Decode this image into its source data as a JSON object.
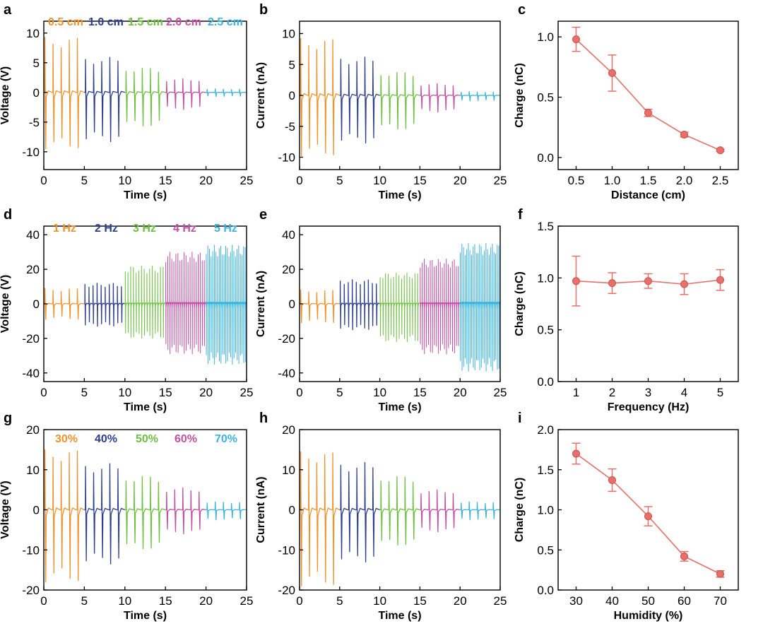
{
  "colors": {
    "orange": "#f0922b",
    "navy": "#2d3e8f",
    "green": "#6cbf3f",
    "magenta": "#c24fa4",
    "cyan": "#3bb3df",
    "charge": "#e8706a",
    "axis": "#000000"
  },
  "chart_data": [
    {
      "id": "a",
      "type": "line",
      "panel_label": "a",
      "title": "",
      "xlabel": "Time (s)",
      "ylabel": "Voltage (V)",
      "xlim": [
        0,
        25
      ],
      "ylim": [
        -13,
        12
      ],
      "xticks": [
        0,
        5,
        10,
        15,
        20,
        25
      ],
      "yticks": [
        -10,
        -5,
        0,
        5,
        10
      ],
      "pulses": 5,
      "series": [
        {
          "name": "0.5 cm",
          "t0": 0,
          "t1": 5,
          "pos": 9.3,
          "neg": -9.5,
          "color": "orange"
        },
        {
          "name": "1.0 cm",
          "t0": 5,
          "t1": 10,
          "pos": 5.9,
          "neg": -8.3,
          "color": "navy"
        },
        {
          "name": "1.5 cm",
          "t0": 10,
          "t1": 15,
          "pos": 4.2,
          "neg": -5.8,
          "color": "green"
        },
        {
          "name": "2.0 cm",
          "t0": 15,
          "t1": 20,
          "pos": 2.3,
          "neg": -2.9,
          "color": "magenta"
        },
        {
          "name": "2.5 cm",
          "t0": 20,
          "t1": 25,
          "pos": 0.6,
          "neg": -0.7,
          "color": "cyan"
        }
      ]
    },
    {
      "id": "b",
      "type": "line",
      "panel_label": "b",
      "title": "",
      "xlabel": "Time (s)",
      "ylabel": "Current (nA)",
      "xlim": [
        0,
        25
      ],
      "ylim": [
        -12,
        12
      ],
      "xticks": [
        0,
        5,
        10,
        15,
        20,
        25
      ],
      "yticks": [
        -10,
        -5,
        0,
        5,
        10
      ],
      "pulses": 5,
      "series": [
        {
          "name": "0.5 cm",
          "t0": 0,
          "t1": 5,
          "pos": 9.2,
          "neg": -9.8,
          "color": "orange"
        },
        {
          "name": "1.0 cm",
          "t0": 5,
          "t1": 10,
          "pos": 6.2,
          "neg": -7.7,
          "color": "navy"
        },
        {
          "name": "1.5 cm",
          "t0": 10,
          "t1": 15,
          "pos": 3.8,
          "neg": -5.6,
          "color": "green"
        },
        {
          "name": "2.0 cm",
          "t0": 15,
          "t1": 20,
          "pos": 1.9,
          "neg": -2.7,
          "color": "magenta"
        },
        {
          "name": "2.5 cm",
          "t0": 20,
          "t1": 25,
          "pos": 0.6,
          "neg": -0.9,
          "color": "cyan"
        }
      ]
    },
    {
      "id": "c",
      "type": "scatter",
      "panel_label": "c",
      "title": "",
      "xlabel": "Distance (cm)",
      "ylabel": "Charge (nC)",
      "xlim": [
        0.25,
        2.75
      ],
      "ylim": [
        -0.1,
        1.13
      ],
      "xticks": [
        0.5,
        1.0,
        1.5,
        2.0,
        2.5
      ],
      "yticks": [
        0.0,
        0.5,
        1.0
      ],
      "xtick_labels": [
        "0.5",
        "1.0",
        "1.5",
        "2.0",
        "2.5"
      ],
      "ytick_labels": [
        "0.0",
        "0.5",
        "1.0"
      ],
      "x": [
        0.5,
        1.0,
        1.5,
        2.0,
        2.5
      ],
      "y": [
        0.98,
        0.7,
        0.37,
        0.19,
        0.06
      ],
      "err": [
        0.1,
        0.15,
        0.03,
        0.02,
        0.01
      ]
    },
    {
      "id": "d",
      "type": "line",
      "panel_label": "d",
      "title": "",
      "xlabel": "Time (s)",
      "ylabel": "Voltage (V)",
      "xlim": [
        0,
        25
      ],
      "ylim": [
        -45,
        45
      ],
      "xticks": [
        0,
        5,
        10,
        15,
        20,
        25
      ],
      "yticks": [
        -40,
        -20,
        0,
        20,
        40
      ],
      "pulses": 0,
      "series": [
        {
          "name": "1 Hz",
          "t0": 0,
          "t1": 5,
          "n": 5,
          "pos": 9,
          "neg": -9,
          "color": "orange"
        },
        {
          "name": "2 Hz",
          "t0": 5,
          "t1": 10,
          "n": 10,
          "pos": 12,
          "neg": -13,
          "color": "navy"
        },
        {
          "name": "3 Hz",
          "t0": 10,
          "t1": 15,
          "n": 15,
          "pos": 22,
          "neg": -20,
          "color": "green"
        },
        {
          "name": "4 Hz",
          "t0": 15,
          "t1": 20,
          "n": 20,
          "pos": 30,
          "neg": -29,
          "color": "magenta"
        },
        {
          "name": "5 Hz",
          "t0": 20,
          "t1": 25,
          "n": 25,
          "pos": 34,
          "neg": -35,
          "color": "cyan"
        }
      ]
    },
    {
      "id": "e",
      "type": "line",
      "panel_label": "e",
      "title": "",
      "xlabel": "Time (s)",
      "ylabel": "Current (nA)",
      "xlim": [
        0,
        25
      ],
      "ylim": [
        -45,
        45
      ],
      "xticks": [
        0,
        5,
        10,
        15,
        20,
        25
      ],
      "yticks": [
        -40,
        -20,
        0,
        20,
        40
      ],
      "pulses": 0,
      "series": [
        {
          "name": "1 Hz",
          "t0": 0,
          "t1": 5,
          "n": 5,
          "pos": 8,
          "neg": -11,
          "color": "orange"
        },
        {
          "name": "2 Hz",
          "t0": 5,
          "t1": 10,
          "n": 10,
          "pos": 14,
          "neg": -15,
          "color": "navy"
        },
        {
          "name": "3 Hz",
          "t0": 10,
          "t1": 15,
          "n": 15,
          "pos": 18,
          "neg": -22,
          "color": "green"
        },
        {
          "name": "4 Hz",
          "t0": 15,
          "t1": 20,
          "n": 20,
          "pos": 26,
          "neg": -29,
          "color": "magenta"
        },
        {
          "name": "5 Hz",
          "t0": 20,
          "t1": 25,
          "n": 25,
          "pos": 35,
          "neg": -39,
          "color": "cyan"
        }
      ]
    },
    {
      "id": "f",
      "type": "scatter",
      "panel_label": "f",
      "title": "",
      "xlabel": "Frequency (Hz)",
      "ylabel": "Charge (nC)",
      "xlim": [
        0.5,
        5.5
      ],
      "ylim": [
        0.0,
        1.5
      ],
      "xticks": [
        1,
        2,
        3,
        4,
        5
      ],
      "yticks": [
        0.0,
        0.5,
        1.0,
        1.5
      ],
      "xtick_labels": [
        "1",
        "2",
        "3",
        "4",
        "5"
      ],
      "ytick_labels": [
        "0.0",
        "0.5",
        "1.0",
        "1.5"
      ],
      "x": [
        1,
        2,
        3,
        4,
        5
      ],
      "y": [
        0.97,
        0.95,
        0.97,
        0.94,
        0.98
      ],
      "err": [
        0.24,
        0.1,
        0.07,
        0.1,
        0.1
      ]
    },
    {
      "id": "g",
      "type": "line",
      "panel_label": "g",
      "title": "",
      "xlabel": "Time (s)",
      "ylabel": "Voltage (V)",
      "xlim": [
        0,
        25
      ],
      "ylim": [
        -20,
        20
      ],
      "xticks": [
        0,
        5,
        10,
        15,
        20,
        25
      ],
      "yticks": [
        -20,
        -10,
        0,
        10,
        20
      ],
      "pulses": 5,
      "series": [
        {
          "name": "30%",
          "t0": 0,
          "t1": 5,
          "pos": 15,
          "neg": -18,
          "color": "orange"
        },
        {
          "name": "40%",
          "t0": 5,
          "t1": 10,
          "pos": 11.5,
          "neg": -13.5,
          "color": "navy"
        },
        {
          "name": "50%",
          "t0": 10,
          "t1": 15,
          "pos": 8.5,
          "neg": -10,
          "color": "green"
        },
        {
          "name": "60%",
          "t0": 15,
          "t1": 20,
          "pos": 5.5,
          "neg": -6,
          "color": "magenta"
        },
        {
          "name": "70%",
          "t0": 20,
          "t1": 25,
          "pos": 2,
          "neg": -2.5,
          "color": "cyan"
        }
      ]
    },
    {
      "id": "h",
      "type": "line",
      "panel_label": "h",
      "title": "",
      "xlabel": "Time (s)",
      "ylabel": "Current (nA)",
      "xlim": [
        0,
        25
      ],
      "ylim": [
        -20,
        20
      ],
      "xticks": [
        0,
        5,
        10,
        15,
        20,
        25
      ],
      "yticks": [
        -20,
        -10,
        0,
        10,
        20
      ],
      "pulses": 5,
      "series": [
        {
          "name": "30%",
          "t0": 0,
          "t1": 5,
          "pos": 14.5,
          "neg": -19,
          "color": "orange"
        },
        {
          "name": "40%",
          "t0": 5,
          "t1": 10,
          "pos": 11.8,
          "neg": -13,
          "color": "navy"
        },
        {
          "name": "50%",
          "t0": 10,
          "t1": 15,
          "pos": 8.5,
          "neg": -9,
          "color": "green"
        },
        {
          "name": "60%",
          "t0": 15,
          "t1": 20,
          "pos": 5,
          "neg": -5.5,
          "color": "magenta"
        },
        {
          "name": "70%",
          "t0": 20,
          "t1": 25,
          "pos": 2,
          "neg": -2.5,
          "color": "cyan"
        }
      ]
    },
    {
      "id": "i",
      "type": "scatter",
      "panel_label": "i",
      "title": "",
      "xlabel": "Humidity (%)",
      "ylabel": "Charge (nC)",
      "xlim": [
        25,
        75
      ],
      "ylim": [
        0.0,
        2.0
      ],
      "xticks": [
        30,
        40,
        50,
        60,
        70
      ],
      "yticks": [
        0.0,
        0.5,
        1.0,
        1.5,
        2.0
      ],
      "xtick_labels": [
        "30",
        "40",
        "50",
        "60",
        "70"
      ],
      "ytick_labels": [
        "0.0",
        "0.5",
        "1.0",
        "1.5",
        "2.0"
      ],
      "x": [
        30,
        40,
        50,
        60,
        70
      ],
      "y": [
        1.7,
        1.37,
        0.92,
        0.42,
        0.2
      ],
      "err": [
        0.13,
        0.14,
        0.12,
        0.06,
        0.04
      ]
    }
  ]
}
